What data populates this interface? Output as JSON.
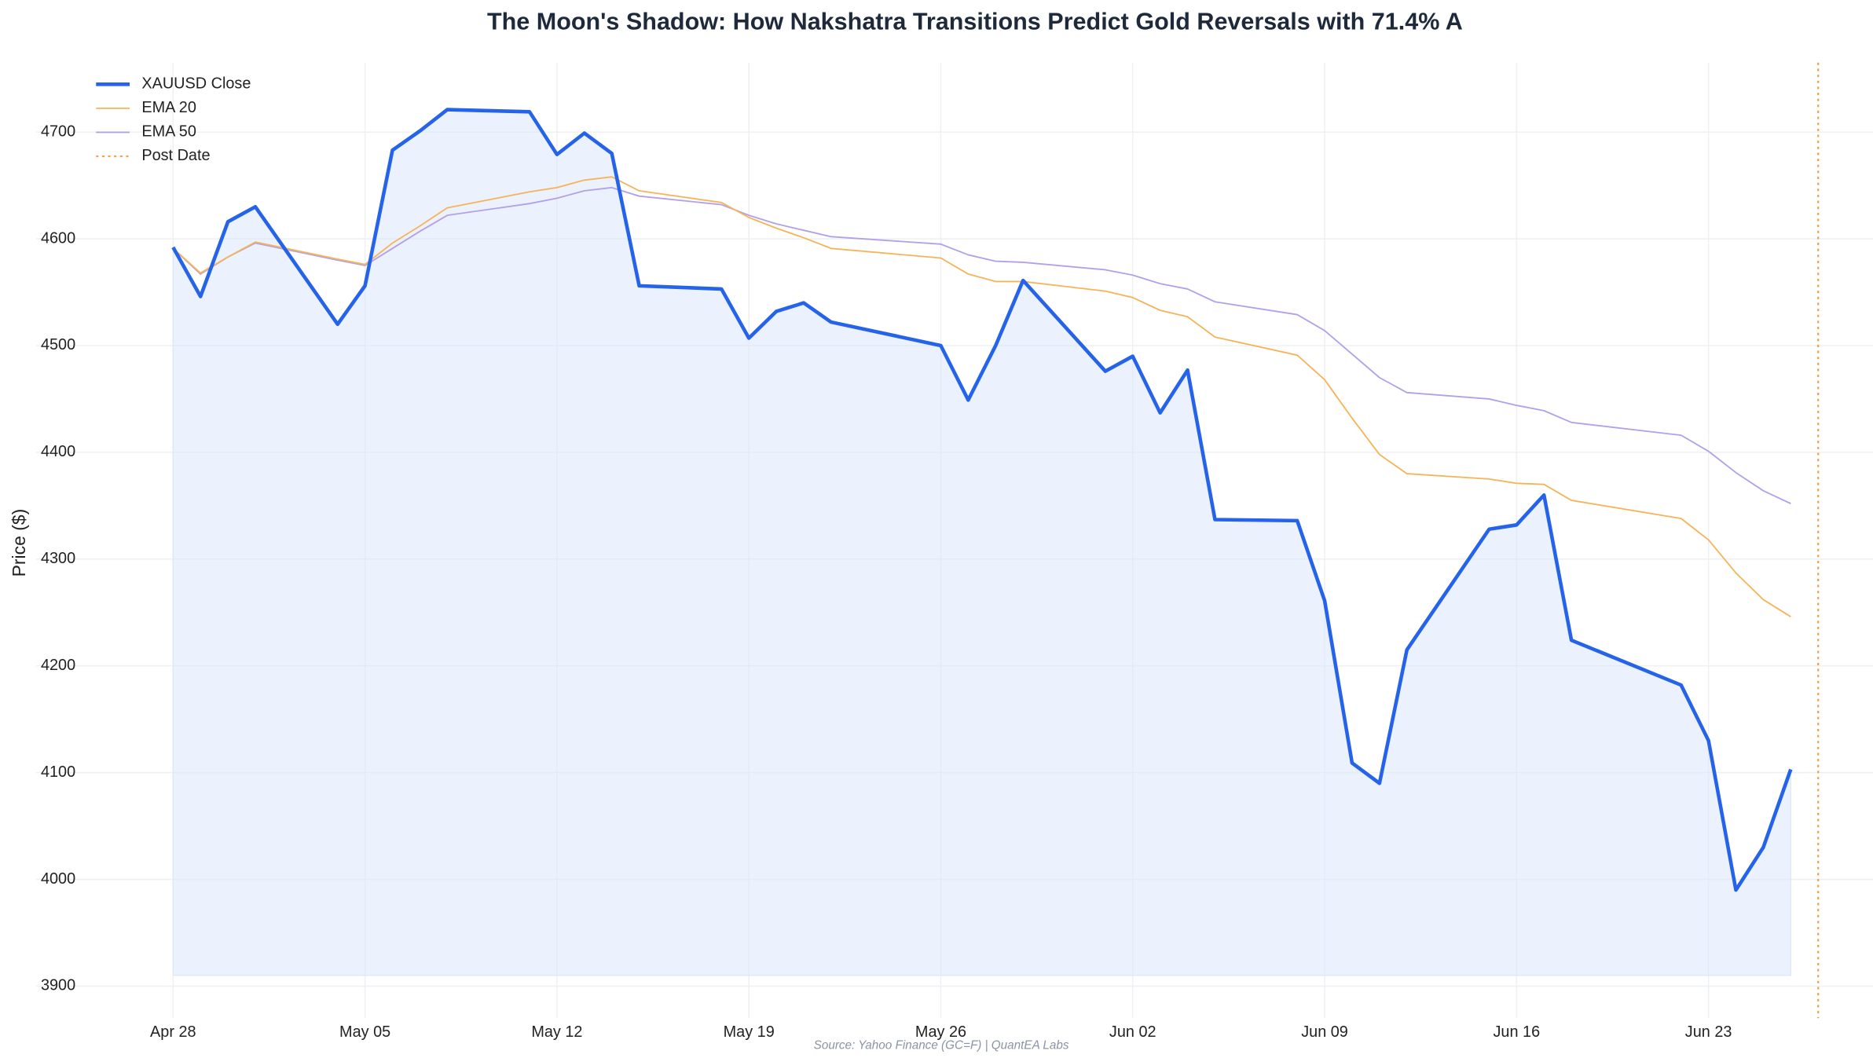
{
  "chart_data": {
    "type": "line",
    "title": "The Moon's Shadow: How Nakshatra Transitions Predict Gold Reversals with 71.4% A",
    "y_label": "Price ($)",
    "source": "Source: Yahoo Finance (GC=F) | QuantEA Labs",
    "x": [
      "Apr 28",
      "Apr 29",
      "Apr 30",
      "May 01",
      "May 04",
      "May 05",
      "May 06",
      "May 07",
      "May 08",
      "May 11",
      "May 12",
      "May 13",
      "May 14",
      "May 15",
      "May 18",
      "May 19",
      "May 20",
      "May 21",
      "May 22",
      "May 26",
      "May 27",
      "May 28",
      "May 29",
      "Jun 01",
      "Jun 02",
      "Jun 03",
      "Jun 04",
      "Jun 05",
      "Jun 08",
      "Jun 09",
      "Jun 10",
      "Jun 11",
      "Jun 12",
      "Jun 15",
      "Jun 16",
      "Jun 17",
      "Jun 18",
      "Jun 22",
      "Jun 23",
      "Jun 24",
      "Jun 25",
      "Jun 26"
    ],
    "series": [
      {
        "name": "XAUUSD Close",
        "color": "#2563eb",
        "values": [
          4592,
          4546,
          4616,
          4630,
          4520,
          4556,
          4683,
          4701,
          4721,
          4719,
          4679,
          4699,
          4680,
          4556,
          4553,
          4507,
          4532,
          4540,
          4522,
          4500,
          4449,
          4500,
          4561,
          4476,
          4490,
          4437,
          4477,
          4337,
          4336,
          4261,
          4109,
          4090,
          4215,
          4328,
          4332,
          4360,
          4224,
          4182,
          4130,
          3990,
          4030,
          4103
        ]
      },
      {
        "name": "EMA 20",
        "color": "#f6b45a",
        "values": [
          4591,
          4568,
          4583,
          4597,
          4581,
          4576,
          4596,
          4612,
          4629,
          4644,
          4648,
          4655,
          4658,
          4645,
          4634,
          4620,
          4610,
          4601,
          4591,
          4582,
          4567,
          4560,
          4560,
          4551,
          4545,
          4533,
          4527,
          4508,
          4491,
          4468,
          4432,
          4398,
          4380,
          4375,
          4371,
          4370,
          4355,
          4338,
          4318,
          4287,
          4262,
          4246
        ]
      },
      {
        "name": "EMA 50",
        "color": "#b3a0ea",
        "values": [
          4591,
          4567,
          4583,
          4596,
          4580,
          4575,
          4591,
          4607,
          4622,
          4633,
          4638,
          4645,
          4648,
          4640,
          4632,
          4622,
          4614,
          4608,
          4602,
          4595,
          4585,
          4579,
          4578,
          4571,
          4566,
          4558,
          4553,
          4541,
          4529,
          4514,
          4492,
          4470,
          4456,
          4450,
          4444,
          4439,
          4428,
          4416,
          4401,
          4381,
          4364,
          4352
        ]
      }
    ],
    "post_date": {
      "name": "Post Date",
      "x": "Jun 27",
      "color": "#f6a04d"
    },
    "area_base": 3910,
    "area_color": "#dbe8fb",
    "xlim": [
      "Apr 23",
      "Jun 29"
    ],
    "xticks": [
      "Apr 28",
      "May 05",
      "May 12",
      "May 19",
      "May 26",
      "Jun 02",
      "Jun 09",
      "Jun 16",
      "Jun 23"
    ],
    "ylim": [
      3870,
      4765
    ],
    "yticks": [
      3900,
      4000,
      4100,
      4200,
      4300,
      4400,
      4500,
      4600,
      4700
    ],
    "grid": true,
    "legend": "upper-left"
  }
}
